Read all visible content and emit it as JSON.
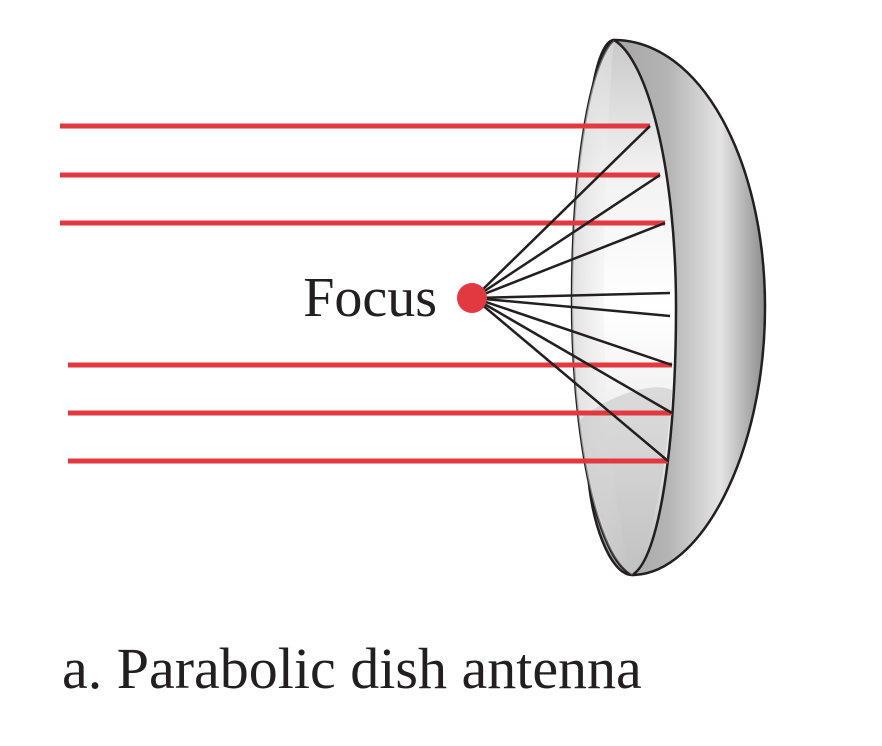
{
  "diagram": {
    "focus_label": "Focus",
    "caption": "a. Parabolic dish antenna",
    "colors": {
      "ray": "#e2383f",
      "focus_point": "#e2383f",
      "reflected_line": "#231f20",
      "dish_outline": "#231f20",
      "dish_inner": "#dcdcdc",
      "dish_rim": "#a9a9a9"
    }
  }
}
